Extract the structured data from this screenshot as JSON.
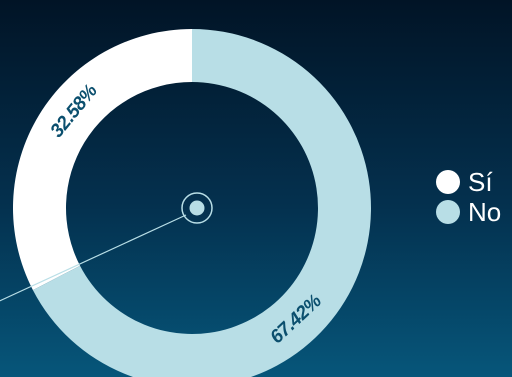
{
  "chart_data": {
    "type": "pie",
    "donut": true,
    "categories": [
      "Sí",
      "No"
    ],
    "values": [
      32.58,
      67.42
    ],
    "unit": "%",
    "data_labels": [
      "32.58%",
      "67.42%"
    ],
    "colors": [
      "#ffffff",
      "#b8dee6"
    ],
    "label_color": "#0b4f6e",
    "legend": {
      "placement": "right",
      "entries": [
        "Sí",
        "No"
      ]
    }
  }
}
